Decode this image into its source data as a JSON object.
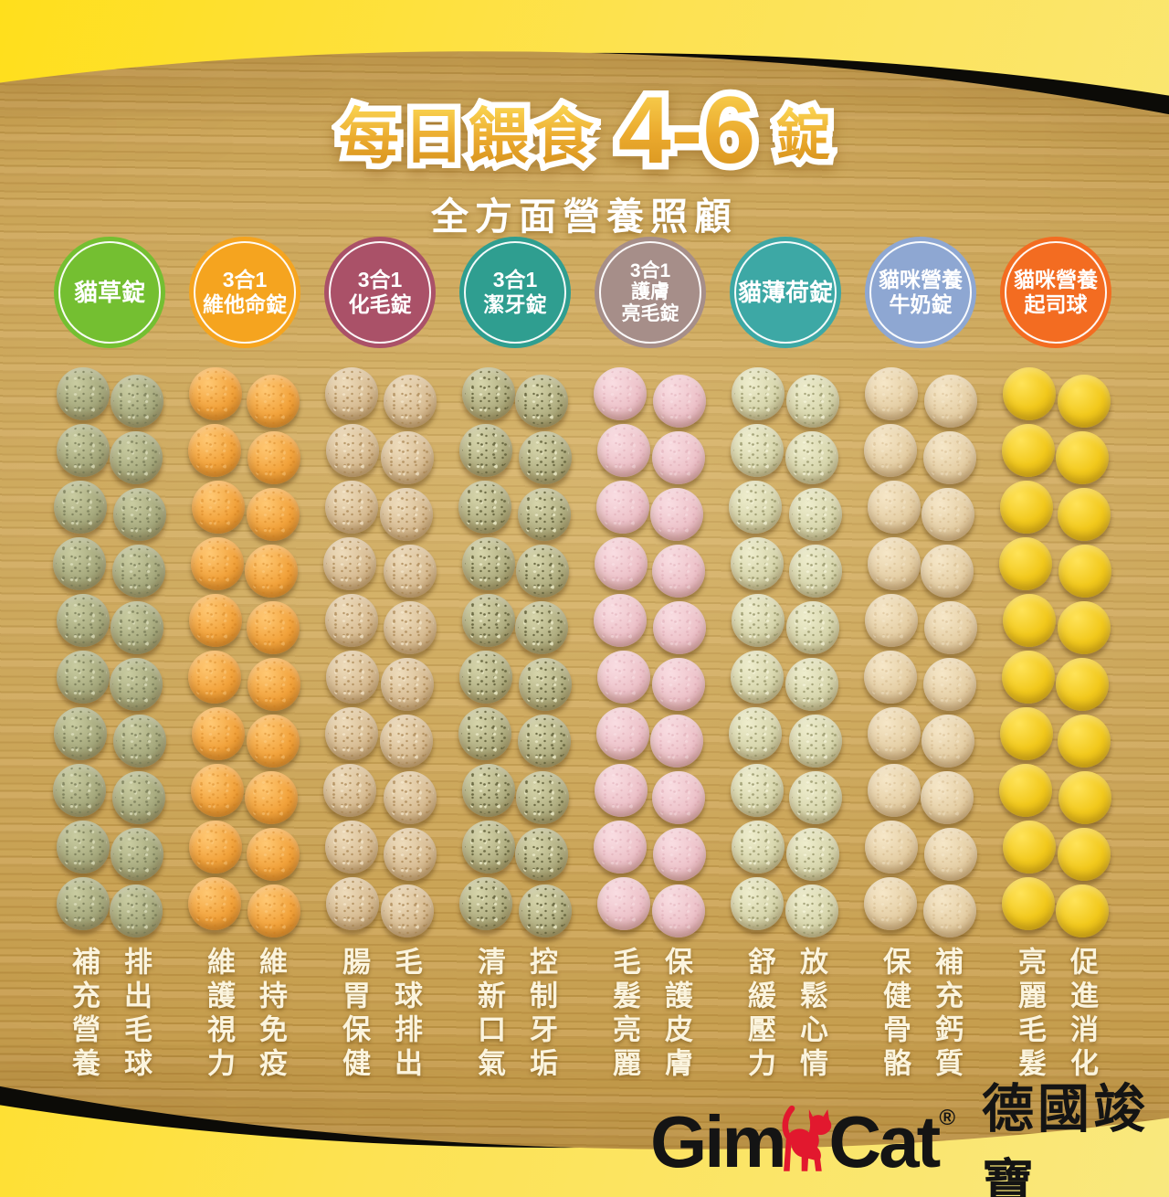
{
  "title": {
    "prefix": "每日餵食",
    "dose": "4-6",
    "suffix": "錠",
    "subtitle": "全方面營養照顧"
  },
  "brand": {
    "gim": "Gim",
    "cat": "Cat",
    "reg": "®",
    "chinese_name": "德國竣寶",
    "cat_color": "#e2182e",
    "text_color": "#141414"
  },
  "colors": {
    "background_yellow_left": "#ffdf1c",
    "background_yellow_right": "#f9e87e",
    "wood_base": "#c49c4c",
    "panel_shadow": "#0c0b07",
    "headline_gold": "#eaa92d",
    "headline_outline": "#ffffff",
    "benefit_text": "#fbf4de"
  },
  "products": [
    {
      "badge_lines": [
        "貓草錠"
      ],
      "badge_color": "#74bf31",
      "pill": {
        "base": "#a7aa7e",
        "dark": "#7d8058",
        "light": "#c9cca1",
        "speckle_dark": "#6f7350",
        "speckle_light": "#e3e5c4",
        "speckled": true,
        "speckle_opacity": 0.7
      },
      "benefit_left": "補充營養",
      "benefit_right": "排出毛球"
    },
    {
      "badge_lines": [
        "3合1",
        "維他命錠"
      ],
      "badge_color": "#f5a41f",
      "pill": {
        "base": "#f2a33c",
        "dark": "#d47c14",
        "light": "#ffc873",
        "speckle_dark": "#cf7d1c",
        "speckle_light": "#ffd694",
        "speckled": true,
        "speckle_opacity": 0.4
      },
      "benefit_left": "維護視力",
      "benefit_right": "維持免疫"
    },
    {
      "badge_lines": [
        "3合1",
        "化毛錠"
      ],
      "badge_color": "#aa5168",
      "pill": {
        "base": "#d8bd94",
        "dark": "#b08c57",
        "light": "#eedcbc",
        "speckle_dark": "#a5804c",
        "speckle_light": "#f7ead0",
        "speckled": true,
        "speckle_opacity": 0.7
      },
      "benefit_left": "腸胃保健",
      "benefit_right": "毛球排出"
    },
    {
      "badge_lines": [
        "3合1",
        "潔牙錠"
      ],
      "badge_color": "#2f9e90",
      "pill": {
        "base": "#b2b083",
        "dark": "#82804f",
        "light": "#d6d5ab",
        "speckle_dark": "#5f5e38",
        "speckle_light": "#ecebc8",
        "speckled": true,
        "speckle_opacity": 0.85
      },
      "benefit_left": "清新口氣",
      "benefit_right": "控制牙垢"
    },
    {
      "badge_lines": [
        "3合1",
        "護膚",
        "亮毛錠"
      ],
      "badge_color": "#a68e89",
      "pill": {
        "base": "#edc3ca",
        "dark": "#d095a2",
        "light": "#f9dde2",
        "speckle_dark": "#d49aa6",
        "speckle_light": "#fdeef1",
        "speckled": true,
        "speckle_opacity": 0.35
      },
      "benefit_left": "毛髮亮麗",
      "benefit_right": "保護皮膚"
    },
    {
      "badge_lines": [
        "貓薄荷錠"
      ],
      "badge_color": "#3da8a5",
      "pill": {
        "base": "#d7d6ad",
        "dark": "#a7a679",
        "light": "#eeedcd",
        "speckle_dark": "#8c8b5e",
        "speckle_light": "#f8f7dd",
        "speckled": true,
        "speckle_opacity": 0.7
      },
      "benefit_left": "舒緩壓力",
      "benefit_right": "放鬆心情"
    },
    {
      "badge_lines": [
        "貓咪營養",
        "牛奶錠"
      ],
      "badge_color": "#8ea7d2",
      "pill": {
        "base": "#e5cfa6",
        "dark": "#c2a06c",
        "light": "#f6e7c8",
        "speckle_dark": "#c8a877",
        "speckle_light": "#faf0d9",
        "speckled": true,
        "speckle_opacity": 0.35
      },
      "benefit_left": "保健骨骼",
      "benefit_right": "補充鈣質"
    },
    {
      "badge_lines": [
        "貓咪營養",
        "起司球"
      ],
      "badge_color": "#f36c21",
      "pill": {
        "base": "#f2c91d",
        "dark": "#cfa408",
        "light": "#ffe358",
        "speckle_dark": "#d8ad0c",
        "speckle_light": "#fff0a0",
        "speckled": false,
        "speckle_opacity": 0
      },
      "benefit_left": "亮麗毛髮",
      "benefit_right": "促進消化"
    }
  ],
  "layout_note": {
    "columns": 8,
    "pill_rows_per_column": 10,
    "pill_columns_per_product": 2
  }
}
